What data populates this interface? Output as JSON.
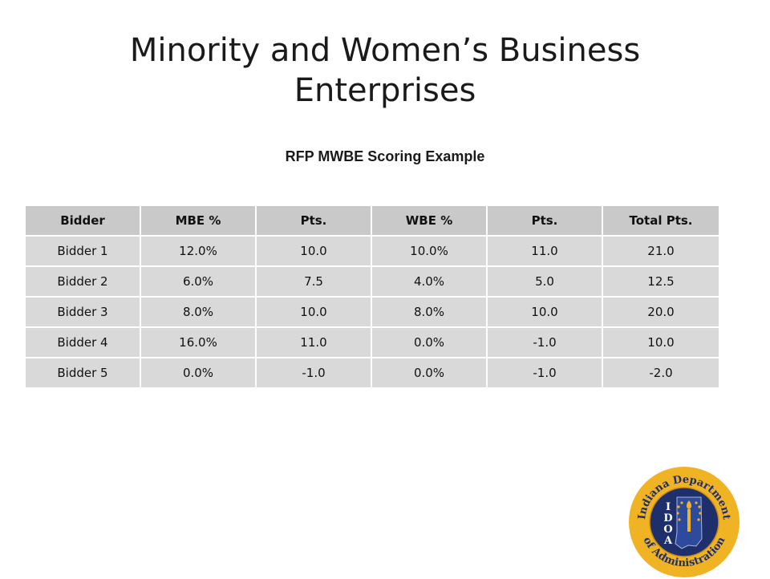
{
  "slide": {
    "title_line1": "Minority and Women’s Business",
    "title_line2": "Enterprises",
    "subtitle": "RFP MWBE Scoring Example"
  },
  "table": {
    "headers": [
      "Bidder",
      "MBE %",
      "Pts.",
      "WBE %",
      "Pts.",
      "Total Pts."
    ],
    "rows": [
      [
        "Bidder 1",
        "12.0%",
        "10.0",
        "10.0%",
        "11.0",
        "21.0"
      ],
      [
        "Bidder 2",
        "6.0%",
        "7.5",
        "4.0%",
        "5.0",
        "12.5"
      ],
      [
        "Bidder 3",
        "8.0%",
        "10.0",
        "8.0%",
        "10.0",
        "20.0"
      ],
      [
        "Bidder 4",
        "16.0%",
        "11.0",
        "0.0%",
        "-1.0",
        "10.0"
      ],
      [
        "Bidder 5",
        "0.0%",
        "-1.0",
        "0.0%",
        "-1.0",
        "-2.0"
      ]
    ]
  },
  "logo": {
    "top_text": "Indiana Department",
    "bottom_text": "of Administration",
    "initials": [
      "I",
      "D",
      "O",
      "A"
    ],
    "colors": {
      "gold": "#f0b323",
      "navy": "#1f2f6b"
    }
  }
}
